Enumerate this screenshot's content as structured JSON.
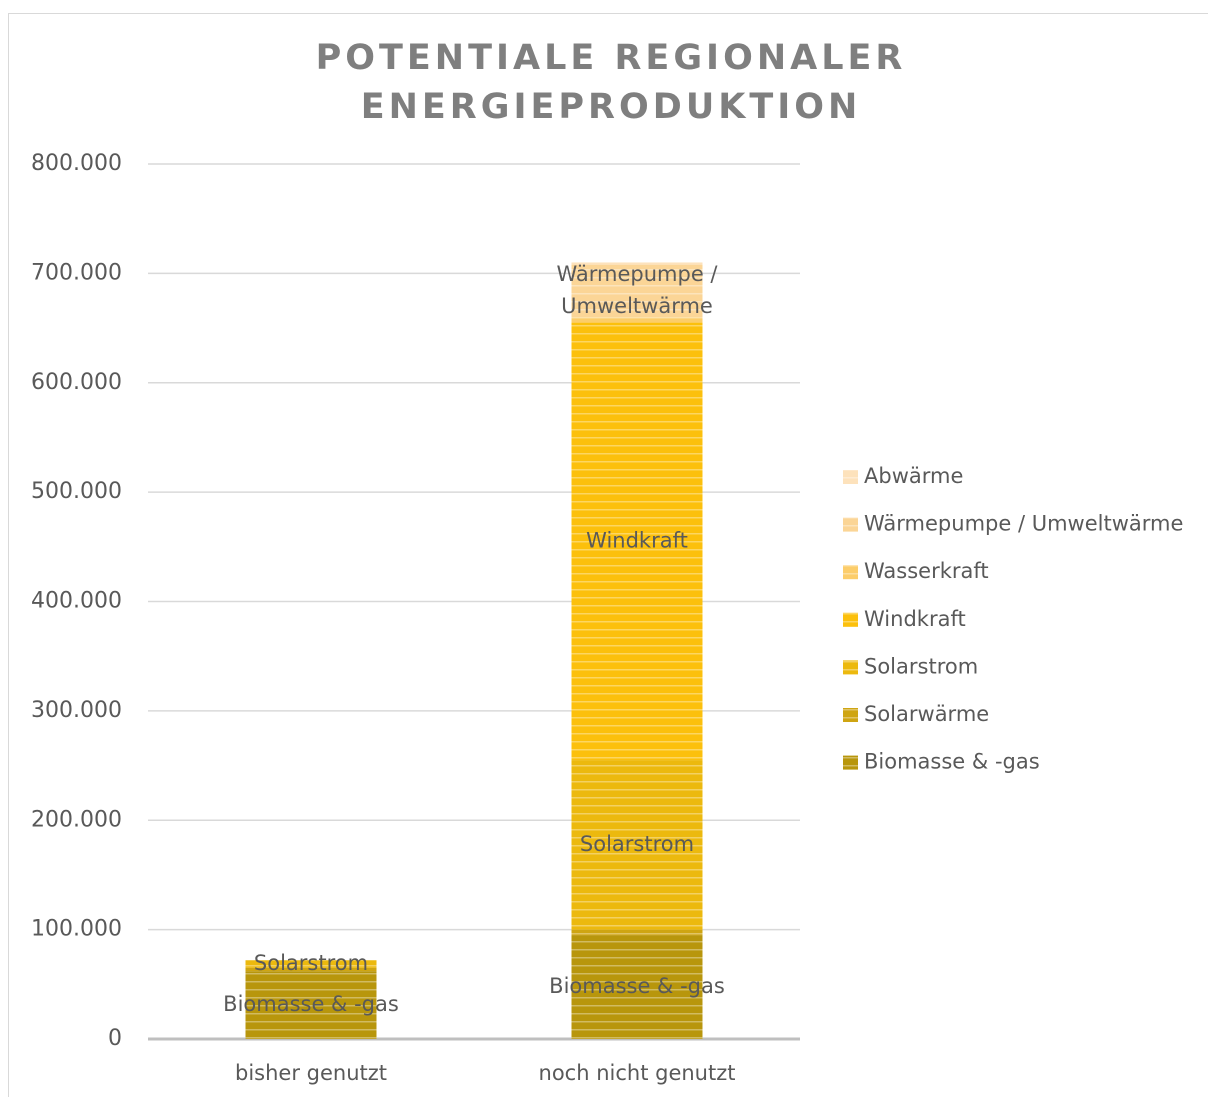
{
  "chart_data": {
    "type": "stacked_bar",
    "title": "POTENTIALE REGIONALER ENERGIEPRODUKTION",
    "categories": [
      "bisher genutzt",
      "noch nicht genutzt"
    ],
    "series": [
      {
        "name": "Biomasse & -gas",
        "color": "#b8960c",
        "values": [
          62000,
          95000
        ]
      },
      {
        "name": "Solarwärme",
        "color": "#cfa512",
        "values": [
          3000,
          5000
        ]
      },
      {
        "name": "Solarstrom",
        "color": "#ecb90e",
        "values": [
          7000,
          155000
        ]
      },
      {
        "name": "Windkraft",
        "color": "#fcc00c",
        "values": [
          0,
          400000
        ]
      },
      {
        "name": "Wasserkraft",
        "color": "#fccd6a",
        "values": [
          0,
          5000
        ]
      },
      {
        "name": "Wärmepumpe / Umweltwärme",
        "color": "#fbd596",
        "values": [
          0,
          48000
        ]
      },
      {
        "name": "Abwärme",
        "color": "#fde2bc",
        "values": [
          0,
          2000
        ]
      }
    ],
    "ylim": [
      0,
      800000
    ],
    "yticks": [
      0,
      {
        "value": 100000,
        "label": "100.000"
      },
      {
        "value": 200000,
        "label": "200.000"
      },
      {
        "value": 300000,
        "label": "300.000"
      },
      {
        "value": 400000,
        "label": "400.000"
      },
      {
        "value": 500000,
        "label": "500.000"
      },
      {
        "value": 600000,
        "label": "600.000"
      },
      {
        "value": 700000,
        "label": "700.000"
      },
      {
        "value": 800000,
        "label": "800.000"
      }
    ],
    "grid": true,
    "legend": "right"
  }
}
